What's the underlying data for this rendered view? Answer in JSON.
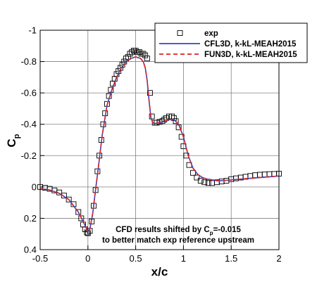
{
  "chart_data": {
    "type": "line",
    "xlabel": "x/c",
    "ylabel": {
      "main": "C",
      "sub": "p"
    },
    "xlim": [
      -0.5,
      2
    ],
    "ylim": [
      -1,
      0.4
    ],
    "y_inverted": true,
    "grid": true,
    "xticks": [
      {
        "v": -0.5,
        "label": "-0.5"
      },
      {
        "v": 0,
        "label": "0"
      },
      {
        "v": 0.5,
        "label": "0.5"
      },
      {
        "v": 1,
        "label": "1"
      },
      {
        "v": 1.5,
        "label": "1.5"
      },
      {
        "v": 2,
        "label": "2"
      }
    ],
    "yticks": [
      {
        "v": -1,
        "label": "-1"
      },
      {
        "v": -0.8,
        "label": "-0.8"
      },
      {
        "v": -0.6,
        "label": "-0.6"
      },
      {
        "v": -0.4,
        "label": "-0.4"
      },
      {
        "v": -0.2,
        "label": "-0.2"
      },
      {
        "v": 0,
        "label": "0"
      },
      {
        "v": 0.2,
        "label": "0.2"
      },
      {
        "v": 0.4,
        "label": "0.4"
      }
    ],
    "legend_position": "top-right",
    "annotation": {
      "line1": {
        "before": "CFD results shifted by C",
        "sub": "p",
        "after": "=-0.015"
      },
      "line2": "to better match exp reference upstream"
    },
    "series": [
      {
        "name": "exp",
        "style": "markers",
        "marker": "open-square",
        "color": "#000000",
        "x": [
          -0.5,
          -0.45,
          -0.4,
          -0.35,
          -0.3,
          -0.25,
          -0.2,
          -0.15,
          -0.1,
          -0.07,
          -0.05,
          -0.03,
          -0.01,
          0.0,
          0.02,
          0.04,
          0.06,
          0.08,
          0.1,
          0.12,
          0.14,
          0.16,
          0.18,
          0.2,
          0.22,
          0.24,
          0.26,
          0.28,
          0.3,
          0.32,
          0.34,
          0.36,
          0.38,
          0.4,
          0.42,
          0.44,
          0.46,
          0.48,
          0.5,
          0.52,
          0.54,
          0.56,
          0.58,
          0.6,
          0.62,
          0.65,
          0.67,
          0.7,
          0.72,
          0.75,
          0.78,
          0.8,
          0.82,
          0.85,
          0.88,
          0.9,
          0.92,
          0.95,
          0.98,
          1.0,
          1.03,
          1.06,
          1.1,
          1.14,
          1.18,
          1.22,
          1.26,
          1.3,
          1.35,
          1.4,
          1.45,
          1.5,
          1.55,
          1.6,
          1.65,
          1.7,
          1.75,
          1.8,
          1.85,
          1.9,
          1.95,
          2.0
        ],
        "y": [
          0.0,
          0.005,
          0.012,
          0.022,
          0.035,
          0.055,
          0.08,
          0.11,
          0.16,
          0.2,
          0.24,
          0.27,
          0.29,
          0.295,
          0.28,
          0.22,
          0.12,
          0.02,
          -0.1,
          -0.2,
          -0.3,
          -0.4,
          -0.47,
          -0.53,
          -0.58,
          -0.62,
          -0.66,
          -0.69,
          -0.72,
          -0.74,
          -0.76,
          -0.78,
          -0.8,
          -0.82,
          -0.83,
          -0.85,
          -0.86,
          -0.87,
          -0.87,
          -0.86,
          -0.86,
          -0.85,
          -0.85,
          -0.84,
          -0.82,
          -0.6,
          -0.45,
          -0.41,
          -0.41,
          -0.415,
          -0.42,
          -0.43,
          -0.44,
          -0.45,
          -0.45,
          -0.44,
          -0.42,
          -0.38,
          -0.32,
          -0.26,
          -0.2,
          -0.14,
          -0.09,
          -0.06,
          -0.04,
          -0.03,
          -0.025,
          -0.025,
          -0.03,
          -0.035,
          -0.04,
          -0.05,
          -0.055,
          -0.06,
          -0.065,
          -0.07,
          -0.075,
          -0.078,
          -0.08,
          -0.082,
          -0.083,
          -0.085
        ]
      },
      {
        "name": "CFL3D, k-kL-MEAH2015",
        "style": "solid",
        "color": "#3344cc",
        "x": [
          -0.5,
          -0.4,
          -0.3,
          -0.2,
          -0.1,
          -0.05,
          0.0,
          0.02,
          0.05,
          0.08,
          0.1,
          0.12,
          0.15,
          0.2,
          0.25,
          0.3,
          0.35,
          0.4,
          0.45,
          0.5,
          0.55,
          0.58,
          0.6,
          0.62,
          0.64,
          0.66,
          0.68,
          0.7,
          0.75,
          0.8,
          0.85,
          0.9,
          0.95,
          1.0,
          1.05,
          1.1,
          1.15,
          1.2,
          1.25,
          1.3,
          1.35,
          1.4,
          1.5,
          1.6,
          1.7,
          1.8,
          1.9,
          2.0
        ],
        "y": [
          0.01,
          0.02,
          0.04,
          0.08,
          0.16,
          0.22,
          0.285,
          0.27,
          0.17,
          0.02,
          -0.08,
          -0.18,
          -0.33,
          -0.52,
          -0.62,
          -0.7,
          -0.76,
          -0.8,
          -0.82,
          -0.83,
          -0.82,
          -0.8,
          -0.76,
          -0.68,
          -0.55,
          -0.44,
          -0.41,
          -0.405,
          -0.41,
          -0.42,
          -0.43,
          -0.43,
          -0.4,
          -0.32,
          -0.2,
          -0.12,
          -0.08,
          -0.06,
          -0.05,
          -0.045,
          -0.04,
          -0.04,
          -0.045,
          -0.05,
          -0.055,
          -0.06,
          -0.065,
          -0.07
        ]
      },
      {
        "name": "FUN3D, k-kL-MEAH2015",
        "style": "dashed",
        "color": "#dd2222",
        "x": [
          -0.5,
          -0.4,
          -0.3,
          -0.2,
          -0.1,
          -0.05,
          0.0,
          0.02,
          0.05,
          0.08,
          0.1,
          0.12,
          0.15,
          0.2,
          0.25,
          0.3,
          0.35,
          0.4,
          0.45,
          0.5,
          0.55,
          0.58,
          0.6,
          0.62,
          0.64,
          0.66,
          0.68,
          0.7,
          0.75,
          0.8,
          0.85,
          0.9,
          0.95,
          1.0,
          1.05,
          1.1,
          1.15,
          1.2,
          1.25,
          1.3,
          1.35,
          1.4,
          1.5,
          1.6,
          1.7,
          1.8,
          1.9,
          2.0
        ],
        "y": [
          0.01,
          0.02,
          0.04,
          0.08,
          0.16,
          0.22,
          0.285,
          0.27,
          0.17,
          0.02,
          -0.08,
          -0.18,
          -0.33,
          -0.52,
          -0.62,
          -0.7,
          -0.76,
          -0.8,
          -0.82,
          -0.83,
          -0.82,
          -0.8,
          -0.76,
          -0.68,
          -0.55,
          -0.44,
          -0.41,
          -0.405,
          -0.41,
          -0.42,
          -0.43,
          -0.43,
          -0.4,
          -0.32,
          -0.2,
          -0.12,
          -0.08,
          -0.06,
          -0.05,
          -0.045,
          -0.04,
          -0.04,
          -0.045,
          -0.05,
          -0.055,
          -0.06,
          -0.065,
          -0.07
        ]
      }
    ]
  }
}
